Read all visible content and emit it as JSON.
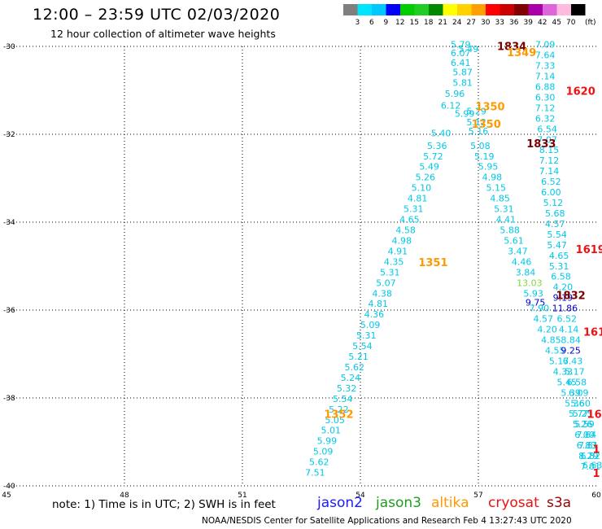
{
  "title": "12:00 – 23:59 UTC 02/03/2020",
  "subtitle": "12 hour collection of altimeter wave heights",
  "note": "note: 1) Time is in UTC; 2) SWH is in feet",
  "footer": "NOAA/NESDIS Center for Satellite Applications and Research    Feb  4 13:27:43 UTC 2020",
  "satellites": [
    {
      "name": "jason2",
      "color": "#1a1aff"
    },
    {
      "name": "jason3",
      "color": "#1e9e1e"
    },
    {
      "name": "altika",
      "color": "#ff9900"
    },
    {
      "name": "cryosat",
      "color": "#ee1111"
    },
    {
      "name": "s3a",
      "color": "#990000"
    }
  ],
  "colorbar": {
    "unit": "(ft)",
    "labels": [
      "3",
      "6",
      "9",
      "12",
      "15",
      "18",
      "21",
      "24",
      "27",
      "30",
      "33",
      "36",
      "39",
      "42",
      "45",
      "70"
    ],
    "colors": [
      "#7f7f7f",
      "#00e5ff",
      "#00c8ff",
      "#0000ff",
      "#00cc00",
      "#22cc22",
      "#008800",
      "#ffff00",
      "#ffd200",
      "#ffa000",
      "#ff0000",
      "#cc0000",
      "#800000",
      "#aa00aa",
      "#dd66dd",
      "#ffbbdd",
      "#000000"
    ]
  },
  "chart_data": {
    "type": "scatter",
    "title": "12:00 – 23:59 UTC 02/03/2020",
    "xlim": [
      45,
      60
    ],
    "ylim": [
      -40,
      -30
    ],
    "xticks": [
      "45",
      "48",
      "51",
      "54",
      "57",
      "60"
    ],
    "yticks": [
      "-30",
      "-32",
      "-34",
      "-36",
      "-38",
      "-40"
    ],
    "grid": true,
    "points": [
      {
        "x": 56.55,
        "y": -30.03,
        "label": "5.79",
        "color": "#00c8e6"
      },
      {
        "x": 56.75,
        "y": -30.13,
        "label": "5.49",
        "color": "#00c8e6"
      },
      {
        "x": 56.55,
        "y": -30.22,
        "label": "6.07",
        "color": "#00c8e6"
      },
      {
        "x": 56.55,
        "y": -30.44,
        "label": "6.41",
        "color": "#00c8e6"
      },
      {
        "x": 56.6,
        "y": -30.66,
        "label": "5.87",
        "color": "#00c8e6"
      },
      {
        "x": 56.6,
        "y": -30.9,
        "label": "5.81",
        "color": "#00c8e6"
      },
      {
        "x": 56.4,
        "y": -31.15,
        "label": "5.96",
        "color": "#00c8e6"
      },
      {
        "x": 56.3,
        "y": -31.42,
        "label": "6.12",
        "color": "#00c8e6"
      },
      {
        "x": 56.05,
        "y": -32.05,
        "label": "5.40",
        "color": "#00c8e6"
      },
      {
        "x": 55.95,
        "y": -32.33,
        "label": "5.36",
        "color": "#00c8e6"
      },
      {
        "x": 55.85,
        "y": -32.57,
        "label": "5.72",
        "color": "#00c8e6"
      },
      {
        "x": 55.75,
        "y": -32.81,
        "label": "5.49",
        "color": "#00c8e6"
      },
      {
        "x": 55.65,
        "y": -33.05,
        "label": "5.26",
        "color": "#00c8e6"
      },
      {
        "x": 55.55,
        "y": -33.29,
        "label": "5.10",
        "color": "#00c8e6"
      },
      {
        "x": 55.45,
        "y": -33.53,
        "label": "4.81",
        "color": "#00c8e6"
      },
      {
        "x": 55.35,
        "y": -33.77,
        "label": "5.31",
        "color": "#00c8e6"
      },
      {
        "x": 55.25,
        "y": -34.01,
        "label": "4.65",
        "color": "#00c8e6"
      },
      {
        "x": 55.15,
        "y": -34.25,
        "label": "4.58",
        "color": "#00c8e6"
      },
      {
        "x": 55.05,
        "y": -34.49,
        "label": "4.98",
        "color": "#00c8e6"
      },
      {
        "x": 54.95,
        "y": -34.73,
        "label": "4.91",
        "color": "#00c8e6"
      },
      {
        "x": 54.85,
        "y": -34.97,
        "label": "4.35",
        "color": "#00c8e6"
      },
      {
        "x": 54.75,
        "y": -35.21,
        "label": "5.31",
        "color": "#00c8e6"
      },
      {
        "x": 54.65,
        "y": -35.45,
        "label": "5.07",
        "color": "#00c8e6"
      },
      {
        "x": 54.55,
        "y": -35.69,
        "label": "4.38",
        "color": "#00c8e6"
      },
      {
        "x": 54.45,
        "y": -35.93,
        "label": "4.81",
        "color": "#00c8e6"
      },
      {
        "x": 54.35,
        "y": -36.17,
        "label": "4.36",
        "color": "#00c8e6"
      },
      {
        "x": 54.25,
        "y": -36.41,
        "label": "5.09",
        "color": "#00c8e6"
      },
      {
        "x": 54.15,
        "y": -36.65,
        "label": "5.31",
        "color": "#00c8e6"
      },
      {
        "x": 54.05,
        "y": -36.89,
        "label": "5.54",
        "color": "#00c8e6"
      },
      {
        "x": 53.95,
        "y": -37.13,
        "label": "5.21",
        "color": "#00c8e6"
      },
      {
        "x": 53.85,
        "y": -37.37,
        "label": "5.62",
        "color": "#00c8e6"
      },
      {
        "x": 53.75,
        "y": -37.61,
        "label": "5.24",
        "color": "#00c8e6"
      },
      {
        "x": 53.65,
        "y": -37.85,
        "label": "5.32",
        "color": "#00c8e6"
      },
      {
        "x": 53.55,
        "y": -38.09,
        "label": "5.54",
        "color": "#00c8e6"
      },
      {
        "x": 53.45,
        "y": -38.33,
        "label": "5.22",
        "color": "#00c8e6"
      },
      {
        "x": 53.35,
        "y": -38.57,
        "label": "5.05",
        "color": "#00c8e6"
      },
      {
        "x": 53.25,
        "y": -38.81,
        "label": "5.01",
        "color": "#00c8e6"
      },
      {
        "x": 53.15,
        "y": -39.05,
        "label": "5.99",
        "color": "#00c8e6"
      },
      {
        "x": 53.05,
        "y": -39.29,
        "label": "5.09",
        "color": "#00c8e6"
      },
      {
        "x": 52.95,
        "y": -39.53,
        "label": "5.62",
        "color": "#00c8e6"
      },
      {
        "x": 52.85,
        "y": -39.77,
        "label": "7.51",
        "color": "#00c8e6"
      },
      {
        "x": 56.65,
        "y": -31.6,
        "label": "5.99",
        "color": "#00c8e6"
      },
      {
        "x": 56.95,
        "y": -31.55,
        "label": "5.29",
        "color": "#00c8e6"
      },
      {
        "x": 56.95,
        "y": -31.8,
        "label": "5.12",
        "color": "#00c8e6"
      },
      {
        "x": 57.0,
        "y": -32.0,
        "label": "5.16",
        "color": "#00c8e6"
      },
      {
        "x": 57.05,
        "y": -32.33,
        "label": "5.08",
        "color": "#00c8e6"
      },
      {
        "x": 57.15,
        "y": -32.57,
        "label": "5.19",
        "color": "#00c8e6"
      },
      {
        "x": 57.25,
        "y": -32.81,
        "label": "5.95",
        "color": "#00c8e6"
      },
      {
        "x": 57.35,
        "y": -33.05,
        "label": "4.98",
        "color": "#00c8e6"
      },
      {
        "x": 57.45,
        "y": -33.29,
        "label": "5.15",
        "color": "#00c8e6"
      },
      {
        "x": 57.55,
        "y": -33.53,
        "label": "4.85",
        "color": "#00c8e6"
      },
      {
        "x": 57.65,
        "y": -33.77,
        "label": "5.31",
        "color": "#00c8e6"
      },
      {
        "x": 57.7,
        "y": -34.01,
        "label": "4.41",
        "color": "#00c8e6"
      },
      {
        "x": 57.8,
        "y": -34.25,
        "label": "5.88",
        "color": "#00c8e6"
      },
      {
        "x": 57.9,
        "y": -34.49,
        "label": "5.61",
        "color": "#00c8e6"
      },
      {
        "x": 58.0,
        "y": -34.73,
        "label": "3.47",
        "color": "#00c8e6"
      },
      {
        "x": 58.1,
        "y": -34.97,
        "label": "4.46",
        "color": "#00c8e6"
      },
      {
        "x": 58.2,
        "y": -35.21,
        "label": "3.84",
        "color": "#00c8e6"
      },
      {
        "x": 58.3,
        "y": -35.45,
        "label": "13.03",
        "color": "#7fd640"
      },
      {
        "x": 58.4,
        "y": -35.69,
        "label": "5.93",
        "color": "#00c8e6"
      },
      {
        "x": 58.45,
        "y": -35.9,
        "label": "9.75",
        "color": "#0000cc"
      },
      {
        "x": 58.55,
        "y": -36.03,
        "label": "7.90",
        "color": "#00c8e6"
      },
      {
        "x": 58.65,
        "y": -36.27,
        "label": "4.57",
        "color": "#00c8e6"
      },
      {
        "x": 58.75,
        "y": -36.51,
        "label": "4.20",
        "color": "#00c8e6"
      },
      {
        "x": 58.85,
        "y": -36.75,
        "label": "4.85",
        "color": "#00c8e6"
      },
      {
        "x": 58.95,
        "y": -36.99,
        "label": "4.55",
        "color": "#00c8e6"
      },
      {
        "x": 59.05,
        "y": -37.23,
        "label": "5.17",
        "color": "#00c8e6"
      },
      {
        "x": 59.15,
        "y": -37.47,
        "label": "4.33",
        "color": "#00c8e6"
      },
      {
        "x": 59.25,
        "y": -37.71,
        "label": "5.45",
        "color": "#00c8e6"
      },
      {
        "x": 59.35,
        "y": -37.95,
        "label": "5.39",
        "color": "#00c8e6"
      },
      {
        "x": 59.45,
        "y": -38.19,
        "label": "5.36",
        "color": "#00c8e6"
      },
      {
        "x": 59.55,
        "y": -38.43,
        "label": "5.77",
        "color": "#00c8e6"
      },
      {
        "x": 59.65,
        "y": -38.67,
        "label": "5.26",
        "color": "#00c8e6"
      },
      {
        "x": 59.75,
        "y": -38.91,
        "label": "7.64",
        "color": "#00c8e6"
      },
      {
        "x": 59.8,
        "y": -39.15,
        "label": "7.81",
        "color": "#00c8e6"
      },
      {
        "x": 59.85,
        "y": -39.39,
        "label": "6.82",
        "color": "#00c8e6"
      },
      {
        "x": 59.9,
        "y": -39.6,
        "label": "6.63",
        "color": "#00c8e6"
      },
      {
        "x": 58.7,
        "y": -30.03,
        "label": "7.09",
        "color": "#00c8e6"
      },
      {
        "x": 58.7,
        "y": -30.27,
        "label": "7.64",
        "color": "#00c8e6"
      },
      {
        "x": 58.7,
        "y": -30.51,
        "label": "7.33",
        "color": "#00c8e6"
      },
      {
        "x": 58.7,
        "y": -30.75,
        "label": "7.14",
        "color": "#00c8e6"
      },
      {
        "x": 58.7,
        "y": -30.99,
        "label": "6.88",
        "color": "#00c8e6"
      },
      {
        "x": 58.7,
        "y": -31.23,
        "label": "6.30",
        "color": "#00c8e6"
      },
      {
        "x": 58.7,
        "y": -31.47,
        "label": "7.12",
        "color": "#00c8e6"
      },
      {
        "x": 58.7,
        "y": -31.71,
        "label": "6.32",
        "color": "#00c8e6"
      },
      {
        "x": 58.75,
        "y": -31.95,
        "label": "6.54",
        "color": "#00c8e6"
      },
      {
        "x": 58.75,
        "y": -32.19,
        "label": "7.07",
        "color": "#00c8e6"
      },
      {
        "x": 58.8,
        "y": -32.43,
        "label": "8.15",
        "color": "#00c8e6"
      },
      {
        "x": 58.8,
        "y": -32.67,
        "label": "7.12",
        "color": "#00c8e6"
      },
      {
        "x": 58.8,
        "y": -32.91,
        "label": "7.14",
        "color": "#00c8e6"
      },
      {
        "x": 58.85,
        "y": -33.15,
        "label": "6.52",
        "color": "#00c8e6"
      },
      {
        "x": 58.85,
        "y": -33.39,
        "label": "6.00",
        "color": "#00c8e6"
      },
      {
        "x": 58.9,
        "y": -33.63,
        "label": "5.12",
        "color": "#00c8e6"
      },
      {
        "x": 58.95,
        "y": -33.87,
        "label": "5.68",
        "color": "#00c8e6"
      },
      {
        "x": 58.95,
        "y": -34.11,
        "label": "4.57",
        "color": "#00c8e6"
      },
      {
        "x": 59.0,
        "y": -34.35,
        "label": "5.54",
        "color": "#00c8e6"
      },
      {
        "x": 59.0,
        "y": -34.59,
        "label": "5.47",
        "color": "#00c8e6"
      },
      {
        "x": 59.05,
        "y": -34.83,
        "label": "4.65",
        "color": "#00c8e6"
      },
      {
        "x": 59.05,
        "y": -35.07,
        "label": "5.31",
        "color": "#00c8e6"
      },
      {
        "x": 59.1,
        "y": -35.31,
        "label": "6.58",
        "color": "#00c8e6"
      },
      {
        "x": 59.15,
        "y": -35.55,
        "label": "4.20",
        "color": "#00c8e6"
      },
      {
        "x": 59.15,
        "y": -35.79,
        "label": "9.19",
        "color": "#0000cc"
      },
      {
        "x": 59.2,
        "y": -36.03,
        "label": "11.86",
        "color": "#0000cc"
      },
      {
        "x": 59.25,
        "y": -36.27,
        "label": "6.52",
        "color": "#00c8e6"
      },
      {
        "x": 59.3,
        "y": -36.51,
        "label": "4.14",
        "color": "#00c8e6"
      },
      {
        "x": 59.35,
        "y": -36.75,
        "label": "8.84",
        "color": "#00c8e6"
      },
      {
        "x": 59.35,
        "y": -36.99,
        "label": "9.25",
        "color": "#0000cc"
      },
      {
        "x": 59.4,
        "y": -37.23,
        "label": "6.43",
        "color": "#00c8e6"
      },
      {
        "x": 59.45,
        "y": -37.47,
        "label": "5.17",
        "color": "#00c8e6"
      },
      {
        "x": 59.5,
        "y": -37.71,
        "label": "6.58",
        "color": "#00c8e6"
      },
      {
        "x": 59.55,
        "y": -37.95,
        "label": "6.09",
        "color": "#00c8e6"
      },
      {
        "x": 59.6,
        "y": -38.19,
        "label": "5.60",
        "color": "#00c8e6"
      },
      {
        "x": 59.65,
        "y": -38.43,
        "label": "5.25",
        "color": "#00c8e6"
      },
      {
        "x": 59.7,
        "y": -38.67,
        "label": "5.59",
        "color": "#00c8e6"
      },
      {
        "x": 59.7,
        "y": -38.91,
        "label": "6.00",
        "color": "#00c8e6"
      },
      {
        "x": 59.75,
        "y": -39.15,
        "label": "6.83",
        "color": "#00c8e6"
      },
      {
        "x": 59.8,
        "y": -39.39,
        "label": "8.29",
        "color": "#00c8e6"
      },
      {
        "x": 59.85,
        "y": -39.63,
        "label": "7.01",
        "color": "#00c8e6"
      }
    ],
    "times": [
      {
        "x": 57.85,
        "y": -30.08,
        "label": "1834",
        "color": "#7a0000"
      },
      {
        "x": 58.1,
        "y": -30.22,
        "label": "1349",
        "color": "#ff9900"
      },
      {
        "x": 59.6,
        "y": -31.1,
        "label": "1620",
        "color": "#ee1111"
      },
      {
        "x": 57.3,
        "y": -31.45,
        "label": "1350",
        "color": "#ff9900"
      },
      {
        "x": 57.2,
        "y": -31.85,
        "label": "1350",
        "color": "#ff9900"
      },
      {
        "x": 58.6,
        "y": -32.3,
        "label": "1833",
        "color": "#7a0000"
      },
      {
        "x": 55.85,
        "y": -35.0,
        "label": "1351",
        "color": "#ff9900"
      },
      {
        "x": 59.35,
        "y": -35.75,
        "label": "1832",
        "color": "#7a0000"
      },
      {
        "x": 59.85,
        "y": -34.7,
        "label": "1619",
        "color": "#ee1111"
      },
      {
        "x": 59.95,
        "y": -36.58,
        "label": "161",
        "color": "#ee1111"
      },
      {
        "x": 53.45,
        "y": -38.45,
        "label": "1352",
        "color": "#ff9900"
      },
      {
        "x": 59.95,
        "y": -38.45,
        "label": "16",
        "color": "#ee1111"
      },
      {
        "x": 60.0,
        "y": -39.25,
        "label": "1",
        "color": "#ee1111"
      },
      {
        "x": 60.0,
        "y": -39.8,
        "label": "1",
        "color": "#ee1111"
      }
    ]
  }
}
